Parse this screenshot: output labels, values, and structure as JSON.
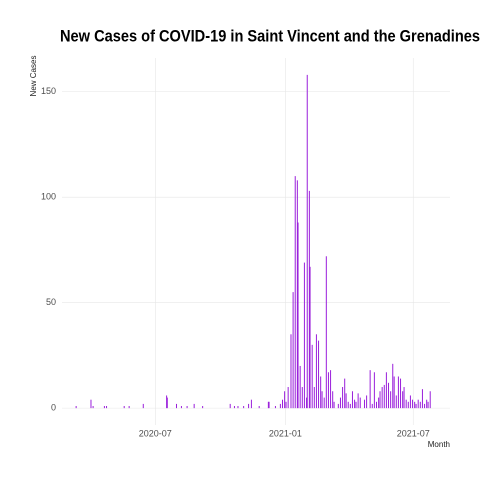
{
  "chart_data": {
    "type": "bar",
    "title": "New Cases of COVID-19 in Saint Vincent and the Grenadines",
    "x_label": "Month",
    "y_label": "New Cases",
    "color": "#9a1fdb",
    "grid": true,
    "xlim": [
      "2020-02-20",
      "2021-08-22"
    ],
    "xticks": [
      {
        "value": "2020-07-01",
        "label": "2020-07"
      },
      {
        "value": "2021-01-01",
        "label": "2021-01"
      },
      {
        "value": "2021-07-01",
        "label": "2021-07"
      }
    ],
    "ylim": [
      -8,
      166
    ],
    "yticks": [
      0,
      50,
      100,
      150
    ],
    "x": [
      "2020-03-11",
      "2020-04-01",
      "2020-04-04",
      "2020-04-20",
      "2020-04-23",
      "2020-05-18",
      "2020-05-25",
      "2020-06-14",
      "2020-07-17",
      "2020-07-18",
      "2020-07-31",
      "2020-08-07",
      "2020-08-15",
      "2020-08-25",
      "2020-09-06",
      "2020-10-15",
      "2020-10-21",
      "2020-10-26",
      "2020-11-03",
      "2020-11-10",
      "2020-11-14",
      "2020-11-25",
      "2020-12-08",
      "2020-12-09",
      "2020-12-18",
      "2020-12-25",
      "2020-12-28",
      "2020-12-31",
      "2021-01-02",
      "2021-01-05",
      "2021-01-09",
      "2021-01-12",
      "2021-01-15",
      "2021-01-18",
      "2021-01-19",
      "2021-01-22",
      "2021-01-25",
      "2021-01-28",
      "2021-01-31",
      "2021-02-01",
      "2021-02-04",
      "2021-02-05",
      "2021-02-08",
      "2021-02-11",
      "2021-02-14",
      "2021-02-17",
      "2021-02-20",
      "2021-02-22",
      "2021-02-25",
      "2021-02-28",
      "2021-03-03",
      "2021-03-06",
      "2021-03-09",
      "2021-03-11",
      "2021-03-17",
      "2021-03-20",
      "2021-03-23",
      "2021-03-26",
      "2021-03-28",
      "2021-03-31",
      "2021-04-03",
      "2021-04-06",
      "2021-04-09",
      "2021-04-11",
      "2021-04-14",
      "2021-04-17",
      "2021-04-23",
      "2021-04-26",
      "2021-05-01",
      "2021-05-04",
      "2021-05-07",
      "2021-05-10",
      "2021-05-13",
      "2021-05-15",
      "2021-05-18",
      "2021-05-21",
      "2021-05-24",
      "2021-05-27",
      "2021-05-30",
      "2021-06-02",
      "2021-06-04",
      "2021-06-07",
      "2021-06-10",
      "2021-06-13",
      "2021-06-16",
      "2021-06-18",
      "2021-06-21",
      "2021-06-24",
      "2021-06-27",
      "2021-06-30",
      "2021-07-03",
      "2021-07-05",
      "2021-07-08",
      "2021-07-11",
      "2021-07-14",
      "2021-07-17",
      "2021-07-20",
      "2021-07-22",
      "2021-07-25"
    ],
    "values": [
      1,
      4,
      1,
      1,
      1,
      1,
      1,
      2,
      6,
      5,
      2,
      1,
      1,
      2,
      1,
      2,
      1,
      1,
      1,
      2,
      4,
      1,
      3,
      3,
      1,
      2,
      4,
      8,
      3,
      10,
      35,
      55,
      110,
      108,
      88,
      20,
      10,
      69,
      5,
      158,
      103,
      67,
      30,
      10,
      35,
      32,
      15,
      8,
      5,
      72,
      17,
      18,
      8,
      3,
      2,
      5,
      10,
      14,
      7,
      3,
      2,
      8,
      4,
      3,
      7,
      5,
      4,
      6,
      18,
      2,
      17,
      3,
      5,
      8,
      10,
      11,
      17,
      12,
      8,
      21,
      15,
      6,
      15,
      14,
      8,
      10,
      4,
      3,
      6,
      4,
      3,
      2,
      4,
      3,
      9,
      2,
      4,
      3,
      8
    ]
  }
}
